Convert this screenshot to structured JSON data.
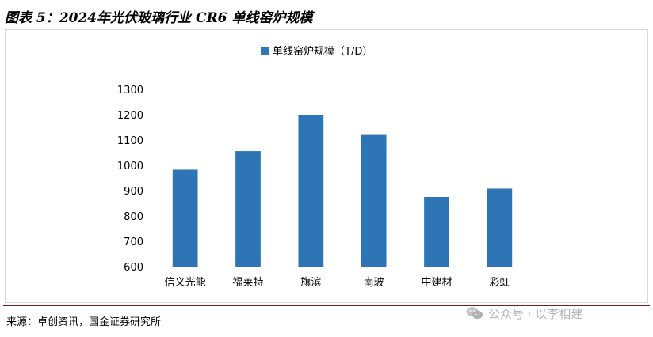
{
  "header": {
    "title": "图表 5：2024年光伏玻璃行业 CR6 单线窑炉规模"
  },
  "footer": {
    "source": "来源：卓创资讯，国金证券研究所",
    "watermark": "公众号 · 以李相建"
  },
  "colors": {
    "bar": "#2e75b6",
    "rule": "#7a1f1f",
    "axis": "#d9d9d9"
  },
  "chart_data": {
    "type": "bar",
    "categories": [
      "信义光能",
      "福莱特",
      "旗滨",
      "南玻",
      "中建材",
      "彩虹"
    ],
    "series": [
      {
        "name": "单线窑炉规模（T/D）",
        "values": [
          983,
          1056,
          1197,
          1120,
          875,
          908
        ]
      }
    ],
    "ylim": [
      600,
      1300
    ],
    "yticks": [
      600,
      700,
      800,
      900,
      1000,
      1100,
      1200,
      1300
    ],
    "grid": false,
    "legend": "top-center"
  }
}
